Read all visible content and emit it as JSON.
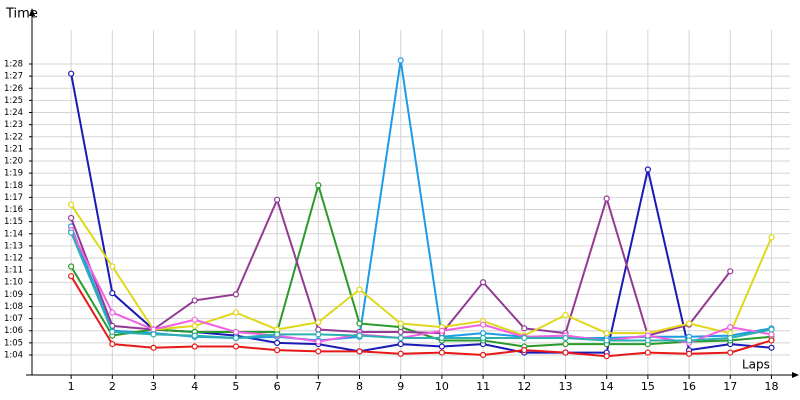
{
  "chart_data": {
    "type": "line",
    "x_label": "Laps",
    "y_label": "Time",
    "x": [
      1,
      2,
      3,
      4,
      5,
      6,
      7,
      8,
      9,
      10,
      11,
      12,
      13,
      14,
      15,
      16,
      17,
      18
    ],
    "xlim": [
      0.05,
      18.45
    ],
    "xticks": [
      1,
      2,
      3,
      4,
      5,
      6,
      7,
      8,
      9,
      10,
      11,
      12,
      13,
      14,
      15,
      16,
      17,
      18
    ],
    "ylim": [
      62.35,
      91.63
    ],
    "yticks": [
      {
        "value": 64,
        "label": "1:04"
      },
      {
        "value": 65,
        "label": "1:05"
      },
      {
        "value": 66,
        "label": "1:06"
      },
      {
        "value": 67,
        "label": "1:07"
      },
      {
        "value": 68,
        "label": "1:08"
      },
      {
        "value": 69,
        "label": "1:09"
      },
      {
        "value": 70,
        "label": "1:10"
      },
      {
        "value": 71,
        "label": "1:11"
      },
      {
        "value": 72,
        "label": "1:12"
      },
      {
        "value": 73,
        "label": "1:13"
      },
      {
        "value": 74,
        "label": "1:14"
      },
      {
        "value": 75,
        "label": "1:15"
      },
      {
        "value": 76,
        "label": "1:16"
      },
      {
        "value": 77,
        "label": "1:17"
      },
      {
        "value": 78,
        "label": "1:18"
      },
      {
        "value": 79,
        "label": "1:19"
      },
      {
        "value": 80,
        "label": "1:20"
      },
      {
        "value": 81,
        "label": "1:21"
      },
      {
        "value": 82,
        "label": "1:22"
      },
      {
        "value": 83,
        "label": "1:23"
      },
      {
        "value": 84,
        "label": "1:24"
      },
      {
        "value": 85,
        "label": "1:25"
      },
      {
        "value": 86,
        "label": "1:26"
      },
      {
        "value": 87,
        "label": "1:27"
      },
      {
        "value": 88,
        "label": "1:28"
      }
    ],
    "grid": true,
    "series": [
      {
        "color": "#1a1ab8",
        "values": [
          87.2,
          69.1,
          66.1,
          65.9,
          65.6,
          65.0,
          64.9,
          64.3,
          64.9,
          64.7,
          64.9,
          64.2,
          64.2,
          64.2,
          79.3,
          64.4,
          64.9,
          64.6
        ]
      },
      {
        "color": "#1e9be6",
        "values": [
          74.6,
          66.0,
          65.8,
          65.5,
          65.4,
          65.5,
          65.2,
          65.5,
          88.3,
          65.5,
          65.8,
          65.5,
          65.4,
          65.4,
          65.5,
          65.5,
          65.6,
          66.2
        ]
      },
      {
        "color": "#2a9a2a",
        "values": [
          71.3,
          65.6,
          66.1,
          65.9,
          65.9,
          65.9,
          78.0,
          66.6,
          66.3,
          65.2,
          65.2,
          64.7,
          64.9,
          64.9,
          64.9,
          65.1,
          65.2,
          65.5
        ]
      },
      {
        "color": "#933a93",
        "values": [
          75.3,
          66.4,
          66.1,
          68.5,
          69.0,
          76.8,
          66.1,
          65.9,
          65.9,
          65.8,
          70.0,
          66.2,
          65.8,
          76.9,
          65.6,
          66.5,
          70.9,
          null
        ]
      },
      {
        "color": "#e0d81a",
        "values": [
          76.4,
          71.3,
          66.1,
          66.4,
          67.5,
          66.1,
          66.7,
          69.4,
          66.6,
          66.3,
          66.8,
          65.6,
          67.3,
          65.8,
          65.8,
          66.6,
          65.8,
          73.7
        ]
      },
      {
        "color": "#f060e0",
        "values": [
          74.3,
          67.5,
          66.1,
          66.9,
          65.9,
          65.6,
          65.1,
          65.7,
          65.4,
          66.0,
          66.5,
          65.5,
          65.6,
          65.2,
          65.6,
          65.0,
          66.3,
          65.7
        ]
      },
      {
        "color": "#2bb0b0",
        "values": [
          74.1,
          65.9,
          65.7,
          65.6,
          65.4,
          65.7,
          65.7,
          65.6,
          65.4,
          65.4,
          65.4,
          65.4,
          65.4,
          65.2,
          65.2,
          65.2,
          65.4,
          66.1
        ]
      },
      {
        "color": "#e81818",
        "values": [
          70.5,
          64.9,
          64.6,
          64.7,
          64.7,
          64.4,
          64.3,
          64.3,
          64.1,
          64.2,
          64.0,
          64.4,
          64.2,
          63.9,
          64.2,
          64.1,
          64.2,
          65.2
        ]
      }
    ]
  }
}
